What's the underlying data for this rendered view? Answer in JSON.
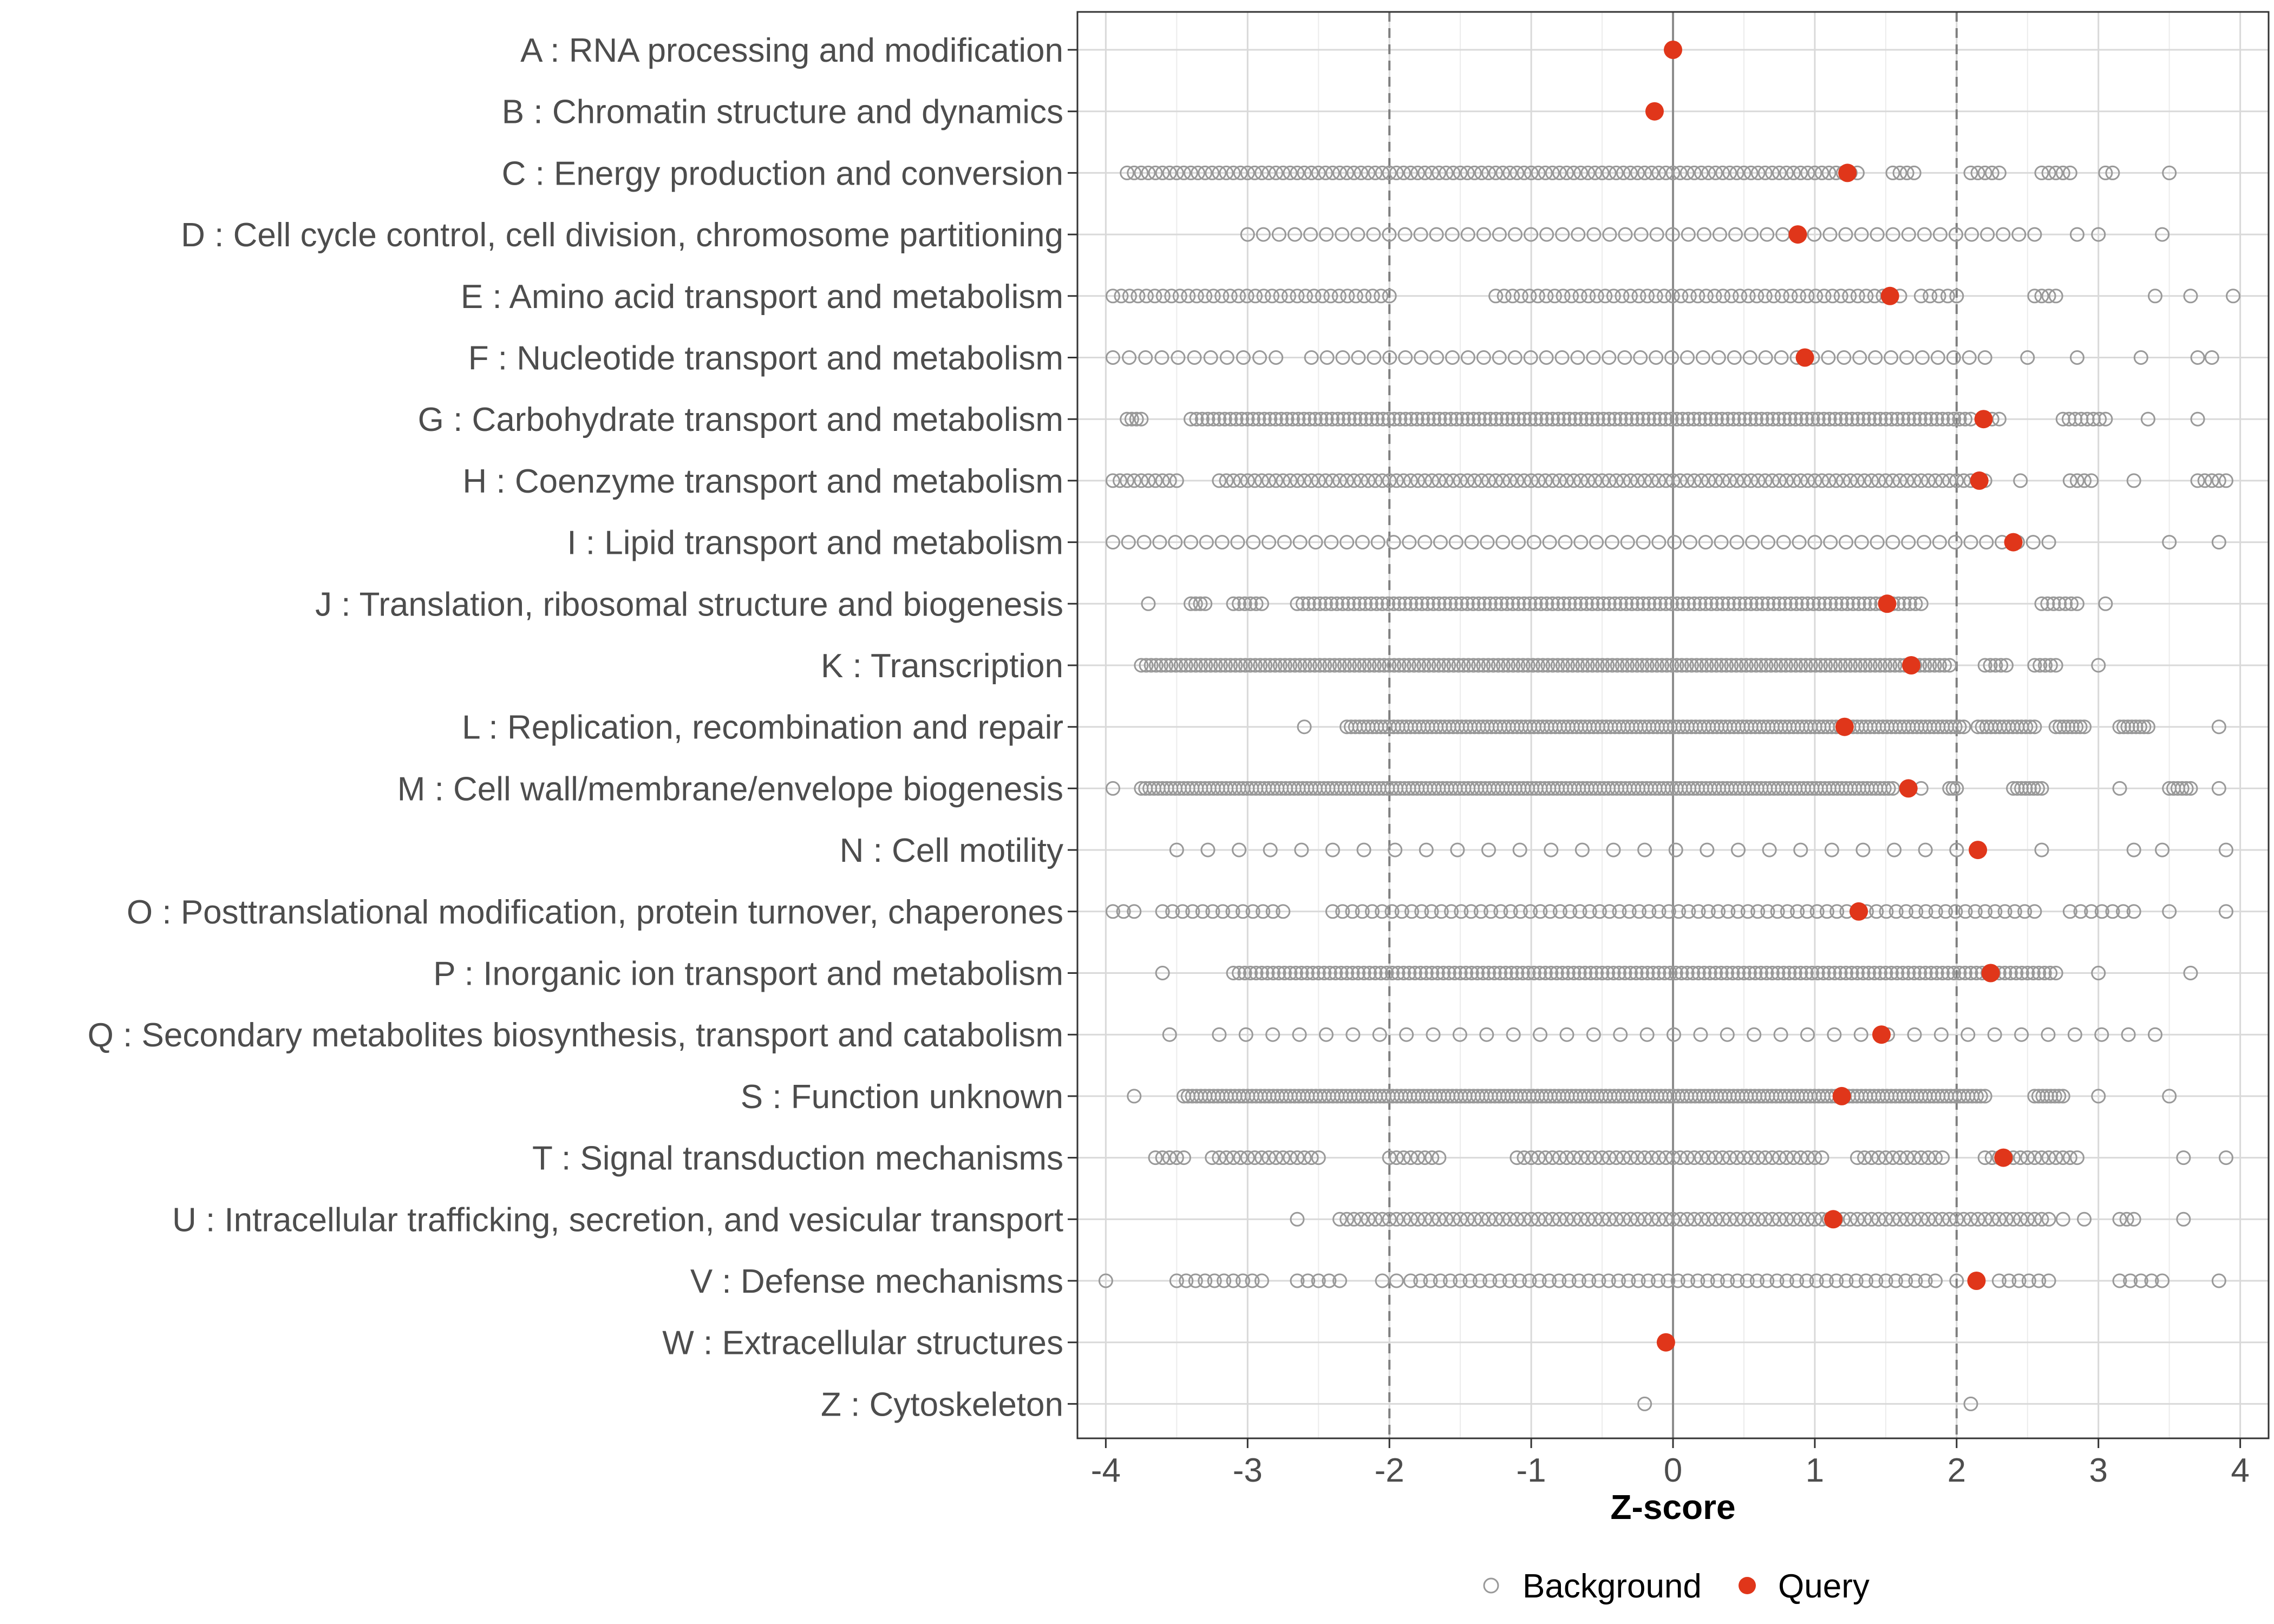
{
  "chart_data": {
    "type": "scatter",
    "xlabel": "Z-score",
    "ylabel": "",
    "xlim": [
      -4.2,
      4.2
    ],
    "xticks": [
      -4,
      -3,
      -2,
      -1,
      0,
      1,
      2,
      3,
      4
    ],
    "xtick_labels": [
      "-4",
      "-3",
      "-2",
      "-1",
      "0",
      "1",
      "2",
      "3",
      "4"
    ],
    "reference_lines": [
      -2,
      0,
      2
    ],
    "grid": true,
    "legend": {
      "position": "bottom",
      "entries": [
        {
          "name": "Background",
          "marker": "open-circle"
        },
        {
          "name": "Query",
          "marker": "filled-circle"
        }
      ]
    },
    "colors": {
      "background": "#999999",
      "query": "#e0361a",
      "grid": "#d9d9d9",
      "refline": "#7f7f7f"
    },
    "categories": [
      {
        "label": "A : RNA processing and modification",
        "query": 0.0,
        "background": {
          "ranges": []
        }
      },
      {
        "label": "B : Chromatin structure and dynamics",
        "query": -0.13,
        "background": {
          "ranges": []
        }
      },
      {
        "label": "C : Energy production and conversion",
        "query": 1.23,
        "background": {
          "ranges": [
            [
              -3.85,
              1.3
            ],
            [
              1.55,
              1.7
            ],
            [
              2.1,
              2.3
            ],
            [
              2.6,
              2.8
            ],
            [
              3.05,
              3.1
            ],
            [
              3.5,
              3.5
            ]
          ],
          "step": 0.05
        }
      },
      {
        "label": "D : Cell cycle control, cell division, chromosome partitioning",
        "query": 0.88,
        "background": {
          "ranges": [
            [
              -3.0,
              2.55
            ],
            [
              2.85,
              3.0
            ],
            [
              3.45,
              3.45
            ]
          ],
          "step": 0.11
        }
      },
      {
        "label": "E : Amino acid transport and metabolism",
        "query": 1.53,
        "background": {
          "ranges": [
            [
              -3.95,
              -2.0
            ],
            [
              -1.25,
              1.6
            ],
            [
              1.75,
              2.0
            ],
            [
              2.55,
              2.7
            ],
            [
              3.4,
              3.4
            ],
            [
              3.65,
              3.65
            ],
            [
              3.95,
              3.95
            ]
          ],
          "step": 0.06
        }
      },
      {
        "label": "F : Nucleotide transport and metabolism",
        "query": 0.93,
        "background": {
          "ranges": [
            [
              -3.95,
              -2.8
            ],
            [
              -2.55,
              2.2
            ],
            [
              2.5,
              2.5
            ],
            [
              2.85,
              2.85
            ],
            [
              3.3,
              3.3
            ],
            [
              3.7,
              3.8
            ]
          ],
          "step": 0.11
        }
      },
      {
        "label": "G : Carbohydrate transport and metabolism",
        "query": 2.19,
        "background": {
          "ranges": [
            [
              -3.85,
              -3.75
            ],
            [
              -3.4,
              2.1
            ],
            [
              2.2,
              2.3
            ],
            [
              2.75,
              3.05
            ],
            [
              3.35,
              3.35
            ],
            [
              3.7,
              3.7
            ]
          ],
          "step": 0.04
        }
      },
      {
        "label": "H : Coenzyme transport and metabolism",
        "query": 2.16,
        "background": {
          "ranges": [
            [
              -3.95,
              -3.5
            ],
            [
              -3.2,
              2.2
            ],
            [
              2.45,
              2.45
            ],
            [
              2.8,
              2.95
            ],
            [
              3.25,
              3.25
            ],
            [
              3.7,
              3.9
            ]
          ],
          "step": 0.05
        }
      },
      {
        "label": "I : Lipid transport and metabolism",
        "query": 2.4,
        "background": {
          "ranges": [
            [
              -3.95,
              2.65
            ],
            [
              3.5,
              3.5
            ],
            [
              3.85,
              3.85
            ]
          ],
          "step": 0.11
        }
      },
      {
        "label": "J : Translation, ribosomal structure and biogenesis",
        "query": 1.51,
        "background": {
          "ranges": [
            [
              -3.7,
              -3.7
            ],
            [
              -3.4,
              -3.3
            ],
            [
              -3.1,
              -2.9
            ],
            [
              -2.65,
              1.75
            ],
            [
              2.6,
              2.85
            ],
            [
              3.05,
              3.05
            ]
          ],
          "step": 0.04
        }
      },
      {
        "label": "K : Transcription",
        "query": 1.68,
        "background": {
          "ranges": [
            [
              -3.75,
              1.95
            ],
            [
              2.2,
              2.35
            ],
            [
              2.55,
              2.7
            ],
            [
              3.0,
              3.0
            ]
          ],
          "step": 0.035
        }
      },
      {
        "label": "L : Replication, recombination and repair",
        "query": 1.21,
        "background": {
          "ranges": [
            [
              -2.6,
              -2.6
            ],
            [
              -2.3,
              2.05
            ],
            [
              2.15,
              2.55
            ],
            [
              2.7,
              2.9
            ],
            [
              3.15,
              3.35
            ],
            [
              3.85,
              3.85
            ]
          ],
          "step": 0.03
        }
      },
      {
        "label": "M : Cell wall/membrane/envelope biogenesis",
        "query": 1.66,
        "background": {
          "ranges": [
            [
              -3.95,
              -3.95
            ],
            [
              -3.75,
              1.55
            ],
            [
              1.75,
              1.75
            ],
            [
              1.95,
              2.0
            ],
            [
              2.4,
              2.6
            ],
            [
              3.15,
              3.15
            ],
            [
              3.5,
              3.65
            ],
            [
              3.85,
              3.85
            ]
          ],
          "step": 0.03
        }
      },
      {
        "label": "N : Cell motility",
        "query": 2.15,
        "background": {
          "ranges": [
            [
              -3.5,
              2.0
            ],
            [
              2.6,
              2.6
            ],
            [
              3.25,
              3.25
            ],
            [
              3.45,
              3.45
            ],
            [
              3.9,
              3.9
            ]
          ],
          "step": 0.22
        }
      },
      {
        "label": "O : Posttranslational modification, protein turnover, chaperones",
        "query": 1.31,
        "background": {
          "ranges": [
            [
              -3.95,
              -3.8
            ],
            [
              -3.6,
              -2.75
            ],
            [
              -2.4,
              2.55
            ],
            [
              2.8,
              3.25
            ],
            [
              3.5,
              3.5
            ],
            [
              3.9,
              3.9
            ]
          ],
          "step": 0.07
        }
      },
      {
        "label": "P : Inorganic ion transport and metabolism",
        "query": 2.24,
        "background": {
          "ranges": [
            [
              -3.6,
              -3.6
            ],
            [
              -3.1,
              2.7
            ],
            [
              3.0,
              3.0
            ],
            [
              3.65,
              3.65
            ]
          ],
          "step": 0.04
        }
      },
      {
        "label": "Q : Secondary metabolites biosynthesis, transport and catabolism",
        "query": 1.47,
        "background": {
          "ranges": [
            [
              -3.55,
              -3.55
            ],
            [
              -3.2,
              3.4
            ]
          ],
          "step": 0.19
        }
      },
      {
        "label": "S : Function unknown",
        "query": 1.19,
        "background": {
          "ranges": [
            [
              -3.8,
              -3.8
            ],
            [
              -3.45,
              2.2
            ],
            [
              2.55,
              2.75
            ],
            [
              3.0,
              3.0
            ],
            [
              3.5,
              3.5
            ]
          ],
          "step": 0.03
        }
      },
      {
        "label": "T : Signal transduction mechanisms",
        "query": 2.33,
        "background": {
          "ranges": [
            [
              -3.65,
              -3.45
            ],
            [
              -3.25,
              -2.5
            ],
            [
              -2.0,
              -1.65
            ],
            [
              -1.1,
              1.05
            ],
            [
              1.3,
              1.9
            ],
            [
              2.2,
              2.85
            ],
            [
              3.6,
              3.6
            ],
            [
              3.9,
              3.9
            ]
          ],
          "step": 0.05
        }
      },
      {
        "label": "U : Intracellular trafficking, secretion, and vesicular transport",
        "query": 1.13,
        "background": {
          "ranges": [
            [
              -2.65,
              -2.65
            ],
            [
              -2.35,
              2.65
            ],
            [
              2.75,
              2.75
            ],
            [
              2.9,
              2.9
            ],
            [
              3.15,
              3.25
            ],
            [
              3.6,
              3.6
            ]
          ],
          "step": 0.05
        }
      },
      {
        "label": "V : Defense mechanisms",
        "query": 2.14,
        "background": {
          "ranges": [
            [
              -4.0,
              -4.0
            ],
            [
              -3.5,
              -2.9
            ],
            [
              -2.65,
              -2.35
            ],
            [
              -2.05,
              -1.95
            ],
            [
              -1.85,
              1.85
            ],
            [
              2.0,
              2.0
            ],
            [
              2.3,
              2.65
            ],
            [
              3.15,
              3.45
            ],
            [
              3.85,
              3.85
            ]
          ],
          "step": 0.07
        }
      },
      {
        "label": "W : Extracellular structures",
        "query": -0.05,
        "background": {
          "ranges": []
        }
      },
      {
        "label": "Z : Cytoskeleton",
        "query": null,
        "background": {
          "ranges": [
            [
              -0.2,
              -0.2
            ],
            [
              2.1,
              2.1
            ]
          ]
        }
      }
    ]
  }
}
